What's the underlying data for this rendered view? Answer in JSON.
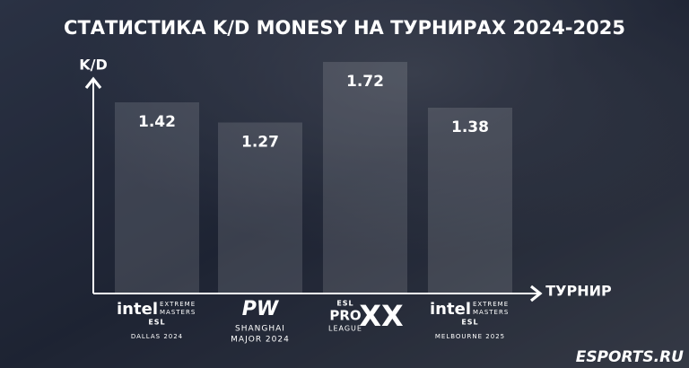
{
  "chart_data": {
    "type": "bar",
    "title": "СТАТИСТИКА K/D MONESY НА ТУРНИРАХ 2024-2025",
    "y_label": "K/D",
    "x_label": "ТУРНИР",
    "categories": [
      [
        "intel",
        "EXTREME",
        "MASTERS",
        "ESL",
        "DALLAS 2024"
      ],
      [
        "PW",
        "SHANGHAI",
        "MAJOR 2024"
      ],
      [
        "ESL",
        "PRO",
        "LEAGUE",
        "XX"
      ],
      [
        "intel",
        "EXTREME",
        "MASTERS",
        "ESL",
        "MELBOURNE 2025"
      ]
    ],
    "values": [
      1.42,
      1.27,
      1.72,
      1.38
    ],
    "ylim": [
      0,
      2
    ],
    "color": "rgba(255,255,255,0.13)",
    "watermark": "ESPORTS.RU"
  }
}
